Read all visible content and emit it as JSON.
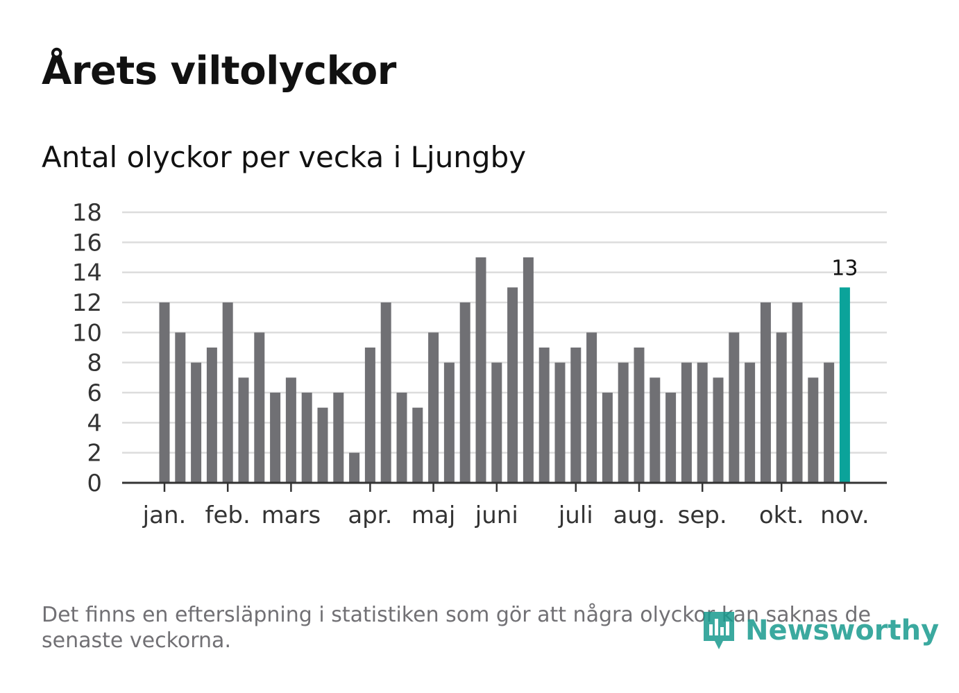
{
  "header": {
    "title": "Årets viltolyckor",
    "subtitle": "Antal olyckor per vecka i Ljungby"
  },
  "footer": {
    "note": "Det finns en eftersläpning i statistiken som gör att några olyckor kan saknas de senaste veckorna.",
    "brand": "Newsworthy"
  },
  "colors": {
    "bar": "#707074",
    "highlight": "#0ba39a",
    "grid": "#dcdcdc",
    "axis": "#333333",
    "tick_text": "#333333",
    "brand": "#1a9b8f"
  },
  "chart_data": {
    "type": "bar",
    "title": "Antal olyckor per vecka i Ljungby",
    "xlabel": "",
    "ylabel": "",
    "ylim": [
      0,
      18
    ],
    "yticks": [
      0,
      2,
      4,
      6,
      8,
      10,
      12,
      14,
      16,
      18
    ],
    "grid": true,
    "weeks": [
      1,
      2,
      3,
      4,
      5,
      6,
      7,
      8,
      9,
      10,
      11,
      12,
      13,
      14,
      15,
      16,
      17,
      18,
      19,
      20,
      21,
      22,
      23,
      24,
      25,
      26,
      27,
      28,
      29,
      30,
      31,
      32,
      33,
      34,
      35,
      36,
      37,
      38,
      39,
      40,
      41,
      42,
      43,
      44
    ],
    "values": [
      12,
      10,
      8,
      9,
      12,
      7,
      10,
      6,
      7,
      6,
      5,
      6,
      2,
      9,
      12,
      6,
      5,
      10,
      8,
      12,
      15,
      8,
      13,
      15,
      9,
      8,
      9,
      10,
      6,
      8,
      9,
      7,
      6,
      8,
      8,
      7,
      10,
      8,
      12,
      10,
      12,
      7,
      8,
      13
    ],
    "highlight_index": 43,
    "highlight_label": "13",
    "month_ticks": [
      {
        "label": "jan.",
        "week": 1
      },
      {
        "label": "feb.",
        "week": 5
      },
      {
        "label": "mars",
        "week": 9
      },
      {
        "label": "apr.",
        "week": 14
      },
      {
        "label": "maj",
        "week": 18
      },
      {
        "label": "juni",
        "week": 22
      },
      {
        "label": "juli",
        "week": 27
      },
      {
        "label": "aug.",
        "week": 31
      },
      {
        "label": "sep.",
        "week": 35
      },
      {
        "label": "okt.",
        "week": 40
      },
      {
        "label": "nov.",
        "week": 44
      }
    ]
  }
}
